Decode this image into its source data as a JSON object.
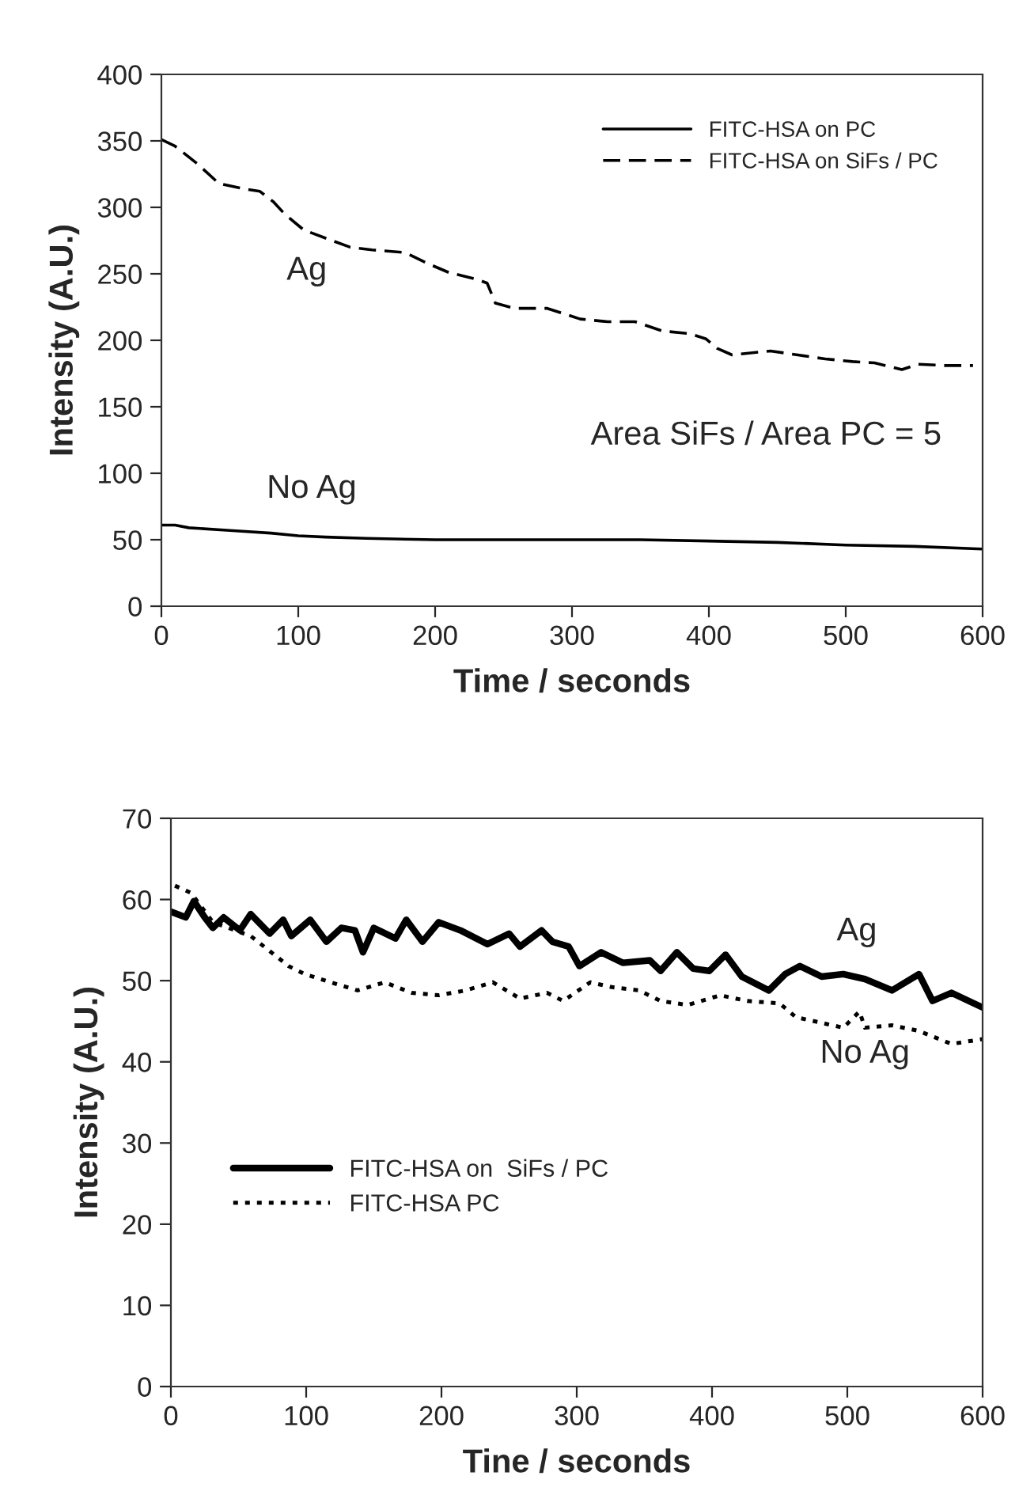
{
  "chart_data": [
    {
      "type": "line",
      "xlabel": "Time / seconds",
      "ylabel": "Intensity (A.U.)",
      "xlim": [
        0,
        600
      ],
      "ylim": [
        0,
        400
      ],
      "xticks": [
        0,
        100,
        200,
        300,
        400,
        500,
        600
      ],
      "yticks": [
        0,
        50,
        100,
        150,
        200,
        250,
        300,
        350,
        400
      ],
      "grid": false,
      "legend": "top right",
      "marker": "none",
      "series": [
        {
          "name": "FITC-HSA on PC",
          "color": "#000000",
          "line_style": "solid",
          "x": [
            0,
            10,
            20,
            50,
            80,
            100,
            120,
            150,
            200,
            250,
            300,
            350,
            400,
            450,
            500,
            550,
            600
          ],
          "values": [
            61,
            61,
            59,
            57,
            55,
            53,
            52,
            51,
            50,
            50,
            50,
            50,
            49,
            48,
            46,
            45,
            43
          ]
        },
        {
          "name": "FITC-HSA on SiFs / PC",
          "color": "#000000",
          "line_style": "dashed",
          "x": [
            0,
            10,
            26,
            42,
            60,
            72,
            82,
            90,
            104,
            122,
            138,
            154,
            178,
            194,
            210,
            230,
            238,
            244,
            258,
            282,
            306,
            326,
            346,
            366,
            386,
            398,
            406,
            417,
            445,
            465,
            485,
            505,
            521,
            541,
            553,
            573,
            593
          ],
          "values": [
            351,
            346,
            333,
            318,
            314,
            312,
            304,
            295,
            283,
            276,
            270,
            268,
            266,
            258,
            251,
            246,
            243,
            228,
            224,
            224,
            216,
            214,
            214,
            207,
            205,
            201,
            194,
            189,
            192,
            189,
            186,
            184,
            183,
            178,
            182,
            181,
            181
          ]
        }
      ],
      "annotations": [
        "Ag",
        "No Ag",
        "Area SiFs / Area PC = 5"
      ]
    },
    {
      "type": "line",
      "xlabel": "Tine / seconds",
      "ylabel": "Intensity (A.U.)",
      "xlim": [
        0,
        600
      ],
      "ylim": [
        0,
        70
      ],
      "xticks": [
        0,
        100,
        200,
        300,
        400,
        500,
        600
      ],
      "yticks": [
        0,
        10,
        20,
        30,
        40,
        50,
        60,
        70
      ],
      "grid": false,
      "legend": "left",
      "marker": "none",
      "series": [
        {
          "name": "FITC-HSA on  SiFs / PC",
          "color": "#000000",
          "line_style": "solid",
          "x": [
            0,
            11,
            17,
            25,
            31,
            39,
            51,
            59,
            73,
            83,
            89,
            103,
            115,
            126,
            136,
            142,
            150,
            166,
            174,
            186,
            198,
            214,
            234,
            250,
            258,
            274,
            282,
            294,
            302,
            318,
            334,
            354,
            362,
            374,
            386,
            398,
            410,
            422,
            442,
            454,
            465,
            481,
            497,
            513,
            533,
            553,
            563,
            577,
            600
          ],
          "values": [
            58.5,
            57.8,
            59.8,
            57.8,
            56.5,
            57.8,
            56.2,
            58.2,
            55.8,
            57.5,
            55.5,
            57.5,
            54.8,
            56.5,
            56.2,
            53.5,
            56.5,
            55.2,
            57.5,
            54.8,
            57.2,
            56.2,
            54.5,
            55.8,
            54.2,
            56.2,
            54.8,
            54.2,
            51.8,
            53.5,
            52.2,
            52.5,
            51.2,
            53.5,
            51.5,
            51.2,
            53.2,
            50.5,
            48.8,
            50.8,
            51.8,
            50.5,
            50.8,
            50.2,
            48.8,
            50.8,
            47.5,
            48.5,
            46.7
          ]
        },
        {
          "name": "FITC-HSA PC",
          "color": "#000000",
          "line_style": "dotted",
          "x": [
            3,
            15,
            31,
            59,
            87,
            99,
            118,
            138,
            158,
            178,
            198,
            218,
            238,
            258,
            278,
            290,
            310,
            326,
            346,
            362,
            382,
            406,
            426,
            450,
            462,
            481,
            497,
            509,
            513,
            533,
            553,
            577,
            600
          ],
          "values": [
            61.7,
            60.8,
            57.2,
            55.5,
            51.8,
            50.8,
            49.8,
            48.8,
            49.8,
            48.5,
            48.2,
            48.8,
            49.8,
            47.8,
            48.5,
            47.5,
            49.8,
            49.2,
            48.8,
            47.5,
            47.0,
            48.2,
            47.5,
            47.2,
            45.5,
            44.8,
            44.2,
            46.2,
            44.2,
            44.5,
            43.8,
            42.2,
            42.8
          ]
        }
      ],
      "annotations": [
        "Ag",
        "No Ag"
      ]
    }
  ]
}
